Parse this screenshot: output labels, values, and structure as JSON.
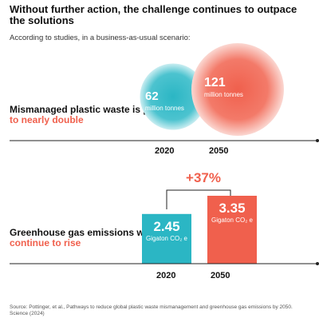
{
  "title": "Without further action, the challenge continues to outpace the solutions",
  "subtitle": "According to studies, in a business-as-usual scenario:",
  "colors": {
    "teal": "#2bb6c4",
    "coral": "#f0604d",
    "axis": "#222222"
  },
  "section1": {
    "label_part1": "Mismanaged plastic waste is predicted",
    "label_part2": "to nearly double"
  },
  "section2": {
    "label_part1": "Greenhouse gas emissions will",
    "label_part2": "continue to rise"
  },
  "source": "Source: Pottinger, et al., Pathways to reduce global plastic waste mismanagement and greenhouse gas emissions by 2050. Science (2024)",
  "chart_data": [
    {
      "type": "bubble",
      "categories": [
        "2020",
        "2050"
      ],
      "values": [
        62,
        121
      ],
      "value_labels": [
        "62",
        "121"
      ],
      "unit": "million tonnes",
      "colors": [
        "#2bb6c4",
        "#f0604d"
      ]
    },
    {
      "type": "bar",
      "categories": [
        "2020",
        "2050"
      ],
      "values": [
        2.45,
        3.35
      ],
      "value_labels": [
        "2.45",
        "3.35"
      ],
      "unit": "Gigaton CO₂ e",
      "change_label": "+37%",
      "colors": [
        "#2bb6c4",
        "#f0604d"
      ]
    }
  ]
}
